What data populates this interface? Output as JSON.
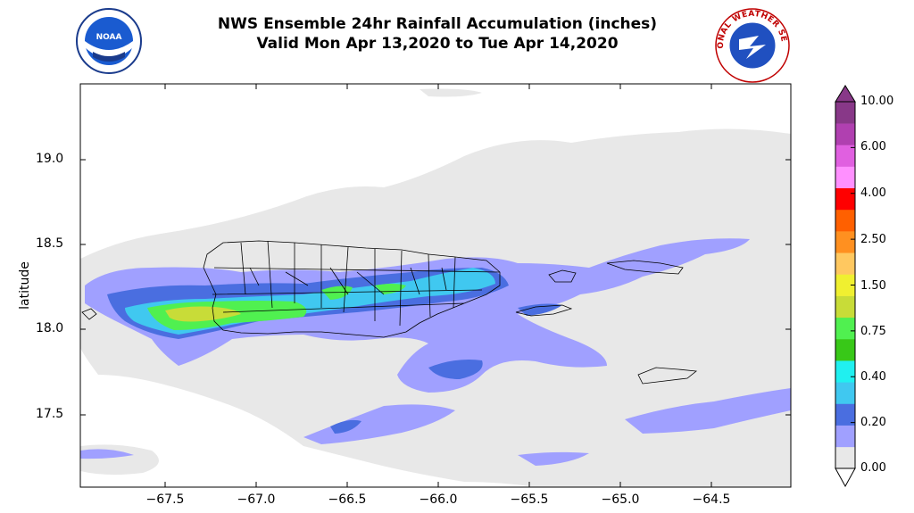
{
  "title": {
    "line1": "NWS Ensemble 24hr Rainfall Accumulation (inches)",
    "line2": "Valid Mon Apr 13,2020 to Tue Apr 14,2020"
  },
  "logos": {
    "left": "noaa-logo",
    "left_text": "NOAA",
    "right": "nws-logo",
    "right_text": "NATIONAL WEATHER SERVICE"
  },
  "axes": {
    "ylabel": "latitude",
    "y_ticks": [
      "19.0",
      "18.5",
      "18.0",
      "17.5"
    ],
    "x_ticks": [
      "−67.5",
      "−67.0",
      "−66.5",
      "−66.0",
      "−65.5",
      "−65.0",
      "−64.5"
    ],
    "lon_range": [
      -67.93,
      -64.03
    ],
    "lat_range": [
      17.07,
      19.42
    ]
  },
  "colorbar": {
    "levels": [
      "0.00",
      "0.20",
      "0.40",
      "0.75",
      "1.50",
      "2.50",
      "4.00",
      "6.00",
      "10.00"
    ],
    "colors": [
      "#e8e8e8",
      "#a0a0ff",
      "#4a6ee0",
      "#40c8f0",
      "#20f0f0",
      "#38c818",
      "#50f050",
      "#c8dc38",
      "#f0f030",
      "#ffc860",
      "#ff9020",
      "#ff6000",
      "#ff0000",
      "#ff90ff",
      "#e060e0",
      "#b040b0",
      "#883888"
    ]
  }
}
